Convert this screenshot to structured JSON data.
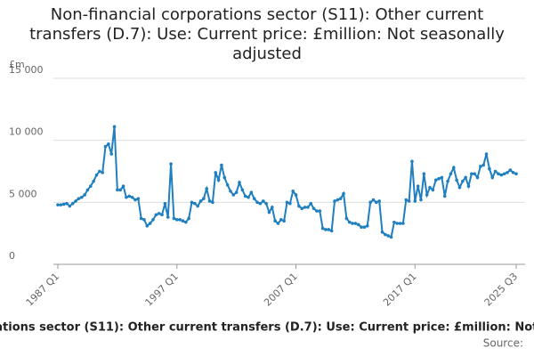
{
  "chart_data": {
    "type": "line",
    "title": "Non-financial corporations sector (S11): Other current transfers (D.7): Use: Current price: £million: Not seasonally adjusted",
    "y_unit": "£m",
    "source_label": "Source:",
    "categories": [
      "1987 Q1",
      null,
      null,
      null,
      null,
      null,
      null,
      null,
      null,
      null,
      null,
      null,
      null,
      null,
      null,
      null,
      null,
      null,
      null,
      null,
      null,
      null,
      null,
      null,
      null,
      null,
      null,
      null,
      null,
      null,
      null,
      null,
      null,
      null,
      null,
      null,
      null,
      null,
      null,
      null,
      "1997 Q1",
      null,
      null,
      null,
      null,
      null,
      null,
      null,
      null,
      null,
      null,
      null,
      null,
      null,
      null,
      null,
      null,
      null,
      null,
      null,
      null,
      null,
      null,
      null,
      null,
      null,
      null,
      null,
      null,
      null,
      null,
      null,
      null,
      null,
      null,
      null,
      null,
      null,
      null,
      null,
      "2007 Q1",
      null,
      null,
      null,
      null,
      null,
      null,
      null,
      null,
      null,
      null,
      null,
      null,
      null,
      null,
      null,
      null,
      null,
      null,
      null,
      null,
      null,
      null,
      null,
      null,
      null,
      null,
      null,
      null,
      null,
      null,
      null,
      null,
      null,
      null,
      null,
      null,
      null,
      null,
      null,
      "2017 Q1",
      null,
      null,
      null,
      null,
      null,
      null,
      null,
      null,
      null,
      null,
      null,
      null,
      null,
      null,
      null,
      null,
      null,
      null,
      null,
      null,
      null,
      null,
      null,
      null,
      null,
      null,
      null,
      null,
      null,
      null,
      null,
      null,
      null,
      "2025 Q3"
    ],
    "series": [
      {
        "name": "Other current transfers",
        "color": "#1f7fbf",
        "values": [
          4800,
          4800,
          4850,
          4900,
          4700,
          4900,
          5100,
          5300,
          5400,
          5600,
          6000,
          6300,
          6700,
          7200,
          7500,
          7400,
          9500,
          9700,
          8900,
          11100,
          6000,
          6000,
          6300,
          5400,
          5500,
          5400,
          5200,
          5300,
          3700,
          3600,
          3100,
          3300,
          3600,
          4000,
          4100,
          4000,
          4900,
          3800,
          8100,
          3700,
          3600,
          3600,
          3500,
          3400,
          3700,
          5000,
          4900,
          4700,
          5100,
          5300,
          6100,
          5100,
          5000,
          7400,
          6800,
          8000,
          7000,
          6400,
          5900,
          5600,
          5800,
          6600,
          6000,
          5500,
          5400,
          5800,
          5300,
          5000,
          4900,
          5100,
          4900,
          4200,
          4600,
          3500,
          3300,
          3600,
          3500,
          5000,
          4900,
          5900,
          5600,
          4700,
          4500,
          4600,
          4600,
          4900,
          4500,
          4300,
          4300,
          2900,
          2800,
          2800,
          2700,
          5100,
          5200,
          5300,
          5700,
          3700,
          3400,
          3300,
          3300,
          3200,
          3000,
          3000,
          3100,
          5000,
          5200,
          5000,
          5100,
          2600,
          2400,
          2300,
          2200,
          3400,
          3300,
          3300,
          3300,
          5200,
          5100,
          8300,
          5100,
          6300,
          5200,
          7300,
          5600,
          6200,
          6000,
          6800,
          6900,
          7000,
          5500,
          6700,
          7300,
          7800,
          6800,
          6200,
          6700,
          7000,
          6300,
          7300,
          7300,
          7000,
          7900,
          8000,
          8900,
          7700,
          7000,
          7500,
          7300,
          7200,
          7300,
          7400,
          7600,
          7400,
          7300
        ]
      }
    ],
    "ylim": [
      0,
      15000
    ],
    "yticks": [
      0,
      {
        "value": 5000,
        "label": "5 000"
      },
      {
        "value": 10000,
        "label": "10 000"
      },
      {
        "value": 15000,
        "label": "15 000"
      }
    ],
    "grid": true
  }
}
